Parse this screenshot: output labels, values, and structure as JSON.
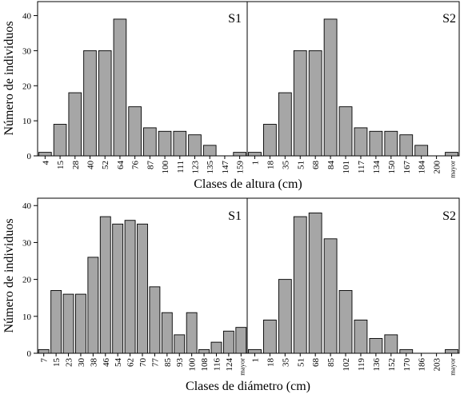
{
  "colors": {
    "bar": "#a6a6a6",
    "outline": "#000000",
    "background": "#ffffff"
  },
  "chart_data": [
    {
      "type": "bar",
      "panel": "S1",
      "xlabel": "",
      "ylabel": "Número de individuos",
      "ylim": [
        0,
        44
      ],
      "yticks": [
        0,
        10,
        20,
        30,
        40
      ],
      "categories": [
        "4",
        "15",
        "28",
        "40",
        "52",
        "64",
        "76",
        "87",
        "100",
        "111",
        "123",
        "135",
        "147",
        "159"
      ],
      "values": [
        1,
        9,
        18,
        30,
        30,
        39,
        14,
        8,
        7,
        7,
        6,
        3,
        0,
        1
      ]
    },
    {
      "type": "bar",
      "panel": "S2",
      "xlabel": "Clases de altura (cm)",
      "ylabel": "",
      "ylim": [
        0,
        44
      ],
      "yticks": [
        0,
        10,
        20,
        30,
        40
      ],
      "categories": [
        "1",
        "18",
        "35",
        "51",
        "68",
        "84",
        "101",
        "117",
        "134",
        "150",
        "167",
        "184",
        "200",
        "mayor"
      ],
      "values": [
        1,
        9,
        18,
        30,
        30,
        39,
        14,
        8,
        7,
        7,
        6,
        3,
        0,
        1
      ]
    },
    {
      "type": "bar",
      "panel": "S1",
      "xlabel": "",
      "ylabel": "Número de individuos",
      "ylim": [
        0,
        42
      ],
      "yticks": [
        0,
        10,
        20,
        30,
        40
      ],
      "categories": [
        "7",
        "15",
        "23",
        "30",
        "38",
        "46",
        "54",
        "62",
        "70",
        "77",
        "85",
        "93",
        "100",
        "108",
        "116",
        "124",
        "mayor"
      ],
      "values": [
        1,
        17,
        16,
        16,
        26,
        37,
        35,
        36,
        35,
        18,
        11,
        5,
        11,
        1,
        3,
        6,
        7
      ]
    },
    {
      "type": "bar",
      "panel": "S2",
      "xlabel": "Clases de diámetro (cm)",
      "ylabel": "",
      "ylim": [
        0,
        42
      ],
      "yticks": [
        0,
        10,
        20,
        30,
        40
      ],
      "categories": [
        "1",
        "18",
        "35",
        "51",
        "68",
        "85",
        "102",
        "119",
        "136",
        "152",
        "170",
        "186",
        "203",
        "mayor"
      ],
      "values": [
        1,
        9,
        20,
        37,
        38,
        31,
        17,
        9,
        4,
        5,
        1,
        0,
        0,
        1
      ]
    }
  ]
}
